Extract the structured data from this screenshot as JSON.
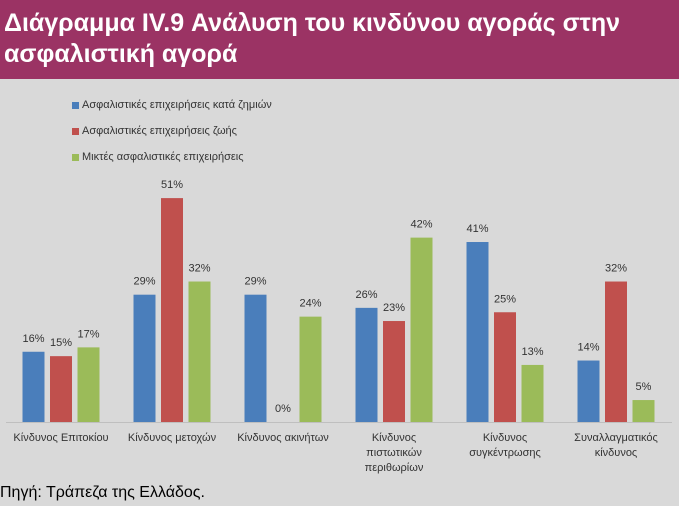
{
  "title": "Διάγραμμα IV.9 Ανάλυση του κινδύνου αγοράς στην ασφαλιστική αγορά",
  "source": "Πηγή: Τράπεζα της Ελλάδος.",
  "chart_data": {
    "type": "bar",
    "title": "Διάγραμμα IV.9 Ανάλυση του κινδύνου αγοράς στην ασφαλιστική αγορά",
    "categories": [
      [
        "Κίνδυνος Επιτοκίου"
      ],
      [
        "Κίνδυνος μετοχών"
      ],
      [
        "Κίνδυνος ακινήτων"
      ],
      [
        "Κίνδυνος",
        "πιστωτικών",
        "περιθωρίων"
      ],
      [
        "Κίνδυνος",
        "συγκέντρωσης"
      ],
      [
        "Συναλλαγματικός",
        "κίνδυνος"
      ]
    ],
    "series": [
      {
        "name": "Ασφαλιστικές επιχειρήσεις κατά ζημιών",
        "color": "#4a7ebb",
        "values": [
          16,
          29,
          29,
          26,
          41,
          14
        ]
      },
      {
        "name": "Ασφαλιστικές επιχειρήσεις ζωής",
        "color": "#c0504d",
        "values": [
          15,
          51,
          0,
          23,
          25,
          32
        ]
      },
      {
        "name": "Μικτές ασφαλιστικές επιχειρήσεις",
        "color": "#9bbb59",
        "values": [
          17,
          32,
          24,
          42,
          13,
          5
        ]
      }
    ],
    "value_suffix": "%",
    "ylim": [
      0,
      55
    ],
    "grid": false,
    "legend_position": "top-left"
  }
}
